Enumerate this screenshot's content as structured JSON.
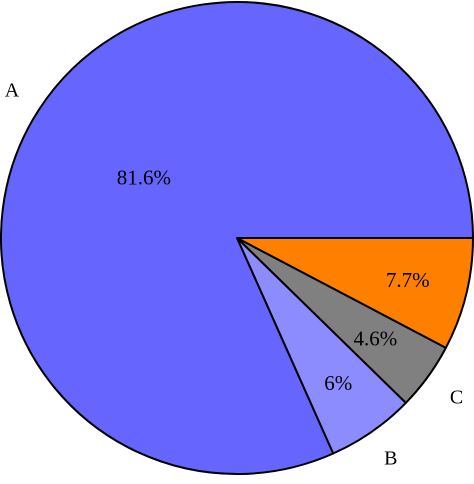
{
  "chart_data": {
    "type": "pie",
    "title": "",
    "start_angle_deg": 0,
    "direction": "clockwise-from-3-oclock",
    "slices": [
      {
        "key": "orange",
        "label": "",
        "value": 7.7,
        "value_label": "7.7%",
        "color": "#ff8000"
      },
      {
        "key": "C",
        "label": "C",
        "value": 4.6,
        "value_label": "4.6%",
        "color": "#808080"
      },
      {
        "key": "B",
        "label": "B",
        "value": 6,
        "value_label": "6%",
        "color": "#8c8cff"
      },
      {
        "key": "A",
        "label": "A",
        "value": 81.6,
        "value_label": "81.6%",
        "color": "#6666ff"
      }
    ]
  }
}
